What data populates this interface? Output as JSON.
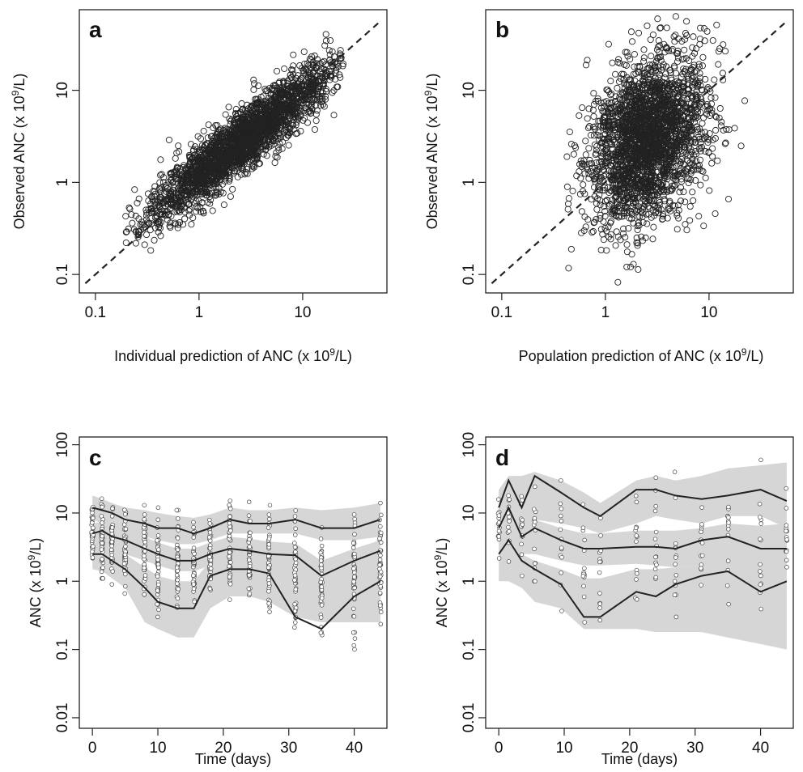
{
  "chart_data": [
    {
      "panel": "a",
      "type": "scatter",
      "xlabel": "Individual prediction of ANC (x 10",
      "ylabel": "Observed ANC (x 10",
      "unit_exponent": "9",
      "unit_suffix": "/L)",
      "x_scale": "log",
      "y_scale": "log",
      "xlim": [
        0.07,
        65
      ],
      "ylim": [
        0.063,
        75
      ],
      "x_ticks": [
        {
          "value": 0.1,
          "label": "0.1"
        },
        {
          "value": 1,
          "label": "1"
        },
        {
          "value": 10,
          "label": "10"
        }
      ],
      "y_ticks": [
        {
          "value": 0.1,
          "label": "0.1"
        },
        {
          "value": 1,
          "label": "1"
        },
        {
          "value": 10,
          "label": "10"
        }
      ],
      "identity_line": [
        0.08,
        55
      ],
      "cloud": {
        "n_points": 2600,
        "center_x": 2.7,
        "center_y": 2.9,
        "spread_x": 0.45,
        "spread_y": 0.43,
        "correlation": 0.92
      },
      "x_range_data": [
        0.18,
        25
      ]
    },
    {
      "panel": "b",
      "type": "scatter",
      "xlabel": "Population prediction of ANC (x 10",
      "ylabel": "Observed ANC (x 10",
      "unit_exponent": "9",
      "unit_suffix": "/L)",
      "x_scale": "log",
      "y_scale": "log",
      "xlim": [
        0.07,
        65
      ],
      "ylim": [
        0.063,
        75
      ],
      "x_ticks": [
        {
          "value": 0.1,
          "label": "0.1"
        },
        {
          "value": 1,
          "label": "1"
        },
        {
          "value": 10,
          "label": "10"
        }
      ],
      "y_ticks": [
        {
          "value": 0.1,
          "label": "0.1"
        },
        {
          "value": 1,
          "label": "1"
        },
        {
          "value": 10,
          "label": "10"
        }
      ],
      "identity_line": [
        0.08,
        55
      ],
      "cloud": {
        "n_points": 2600,
        "center_x": 2.5,
        "center_y": 2.9,
        "spread_x": 0.28,
        "spread_y": 0.45,
        "correlation": 0.3
      },
      "x_range_data": [
        0.4,
        25
      ]
    },
    {
      "panel": "c",
      "type": "line",
      "xlabel": "Time (days)",
      "ylabel": "ANC (x 10",
      "unit_exponent": "9",
      "unit_suffix": "/L)",
      "y_scale": "log",
      "xlim": [
        -2,
        45
      ],
      "ylim": [
        0.007,
        130
      ],
      "x_ticks": [
        {
          "value": 0,
          "label": "0"
        },
        {
          "value": 10,
          "label": "10"
        },
        {
          "value": 20,
          "label": "20"
        },
        {
          "value": 30,
          "label": "30"
        },
        {
          "value": 40,
          "label": "40"
        }
      ],
      "y_ticks": [
        {
          "value": 0.01,
          "label": "0.01"
        },
        {
          "value": 0.1,
          "label": "0.1"
        },
        {
          "value": 1,
          "label": "1"
        },
        {
          "value": 10,
          "label": "10"
        },
        {
          "value": 100,
          "label": "100"
        }
      ],
      "x": [
        0,
        1.5,
        3,
        5,
        8,
        10,
        13,
        15.5,
        18,
        21,
        24,
        27,
        31,
        35,
        40,
        44
      ],
      "series": [
        {
          "values": [
            12,
            11,
            10,
            8,
            7,
            6,
            6,
            5,
            6,
            8,
            7,
            7,
            8,
            6,
            6,
            8
          ]
        },
        {
          "values": [
            5,
            5.5,
            4.5,
            4,
            3,
            2.5,
            2,
            2,
            2.5,
            3,
            2.8,
            2.5,
            2.4,
            1.2,
            2,
            2.8
          ]
        },
        {
          "values": [
            2.5,
            2.5,
            2,
            1.5,
            0.8,
            0.5,
            0.4,
            0.4,
            1.2,
            1.5,
            1.5,
            1.3,
            0.3,
            0.2,
            0.6,
            1
          ]
        }
      ],
      "ci_bands": [
        {
          "lower": [
            8,
            7,
            6,
            5,
            4.5,
            4,
            3.5,
            3.5,
            4,
            5,
            5,
            5,
            5,
            4,
            4,
            4.5
          ],
          "upper": [
            18,
            16,
            14,
            12,
            11,
            10,
            9,
            8.5,
            9.5,
            12,
            11,
            11,
            12,
            11,
            12,
            14
          ]
        },
        {
          "lower": [
            3,
            3.2,
            2.8,
            2.5,
            2,
            1.7,
            1.4,
            1.4,
            1.7,
            2,
            2,
            1.7,
            1.6,
            0.8,
            1.3,
            1.8
          ],
          "upper": [
            7,
            7.5,
            6.5,
            6,
            4.5,
            3.7,
            3,
            3,
            3.7,
            4.5,
            4.2,
            3.8,
            3.6,
            2,
            3,
            4
          ]
        },
        {
          "lower": [
            1.5,
            1.4,
            1.1,
            0.8,
            0.25,
            0.2,
            0.15,
            0.15,
            0.4,
            0.6,
            0.6,
            0.5,
            0.3,
            0.25,
            0.25,
            0.25
          ],
          "upper": [
            3.8,
            3.8,
            3.2,
            2.5,
            1.6,
            1.2,
            1,
            1,
            2,
            2.5,
            2.5,
            2.3,
            1.6,
            1.2,
            1.8,
            2.2
          ]
        }
      ],
      "obs_range": {
        "lo": [
          1.1,
          1.1,
          0.9,
          0.5,
          0.35,
          0.3,
          0.25,
          0.4,
          0.5,
          0.5,
          0.4,
          0.35,
          0.12,
          0.08,
          0.1,
          0.2
        ],
        "hi": [
          20,
          18,
          16,
          15,
          13,
          12,
          11,
          9,
          12,
          18,
          15,
          13,
          14,
          13,
          14,
          14
        ]
      },
      "obs_per_day": 45
    },
    {
      "panel": "d",
      "type": "line",
      "xlabel": "Time (days)",
      "ylabel": "ANC (x 10",
      "unit_exponent": "9",
      "unit_suffix": "/L)",
      "y_scale": "log",
      "xlim": [
        -2,
        45
      ],
      "ylim": [
        0.007,
        130
      ],
      "x_ticks": [
        {
          "value": 0,
          "label": "0"
        },
        {
          "value": 10,
          "label": "10"
        },
        {
          "value": 20,
          "label": "20"
        },
        {
          "value": 30,
          "label": "30"
        },
        {
          "value": 40,
          "label": "40"
        }
      ],
      "y_ticks": [
        {
          "value": 0.01,
          "label": "0.01"
        },
        {
          "value": 0.1,
          "label": "0.1"
        },
        {
          "value": 1,
          "label": "1"
        },
        {
          "value": 10,
          "label": "10"
        },
        {
          "value": 100,
          "label": "100"
        }
      ],
      "x": [
        0,
        1.5,
        3.5,
        5.5,
        9.5,
        13,
        15.5,
        21,
        24,
        27,
        31,
        35,
        40,
        44
      ],
      "series": [
        {
          "values": [
            12,
            30,
            12,
            35,
            20,
            12,
            9,
            22,
            22,
            18,
            16,
            18,
            22,
            15
          ]
        },
        {
          "values": [
            6,
            12,
            4.5,
            6,
            4,
            3,
            3,
            3.2,
            3.2,
            3,
            4,
            4.5,
            3,
            3
          ]
        },
        {
          "values": [
            2.5,
            4,
            2,
            1.5,
            0.9,
            0.3,
            0.3,
            0.7,
            0.6,
            0.9,
            1.2,
            1.4,
            0.7,
            1
          ]
        }
      ],
      "ci_bands": [
        {
          "lower": [
            6,
            8,
            6,
            8,
            7,
            6,
            5,
            7,
            9,
            8,
            7,
            9,
            9,
            6
          ],
          "upper": [
            22,
            35,
            35,
            40,
            30,
            20,
            14,
            30,
            35,
            30,
            35,
            45,
            50,
            55
          ]
        },
        {
          "lower": [
            3,
            3,
            2.5,
            2.5,
            2,
            1.7,
            1.7,
            1.8,
            1.7,
            1.6,
            1.7,
            1.7,
            1.5,
            1.3
          ],
          "upper": [
            8,
            12,
            10,
            8,
            6,
            5,
            5,
            5.5,
            5.5,
            5.5,
            6,
            7,
            6.5,
            7
          ]
        },
        {
          "lower": [
            1,
            1,
            0.8,
            0.5,
            0.4,
            0.2,
            0.2,
            0.2,
            0.18,
            0.18,
            0.18,
            0.15,
            0.12,
            0.1
          ],
          "upper": [
            3,
            3,
            2.5,
            2,
            1.5,
            1.1,
            1.1,
            1.5,
            1.5,
            1.6,
            1.7,
            2.3,
            2.5,
            2.6
          ]
        }
      ],
      "obs_range": {
        "lo": [
          1.5,
          1,
          1.2,
          1,
          0.25,
          0.12,
          0.18,
          0.2,
          0.3,
          0.3,
          0.3,
          0.3,
          0.15,
          0.5
        ],
        "hi": [
          20,
          30,
          25,
          38,
          30,
          25,
          15,
          35,
          50,
          40,
          40,
          45,
          60,
          25
        ]
      },
      "obs_per_day": 14
    }
  ]
}
